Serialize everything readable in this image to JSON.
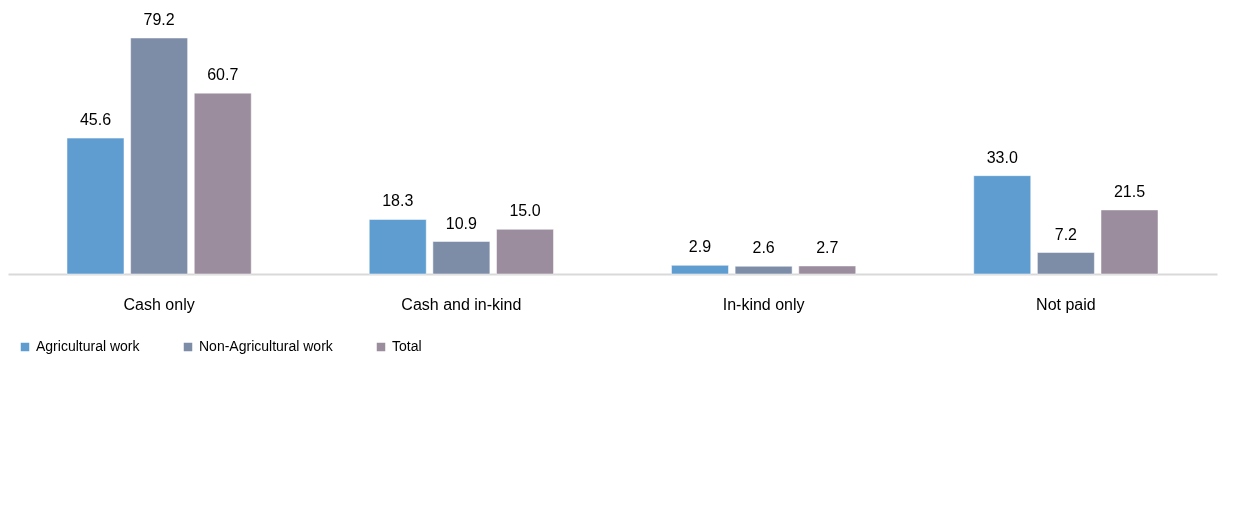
{
  "chart_data": {
    "type": "bar",
    "categories": [
      "Cash only",
      "Cash and in-kind",
      "In-kind only",
      "Not paid"
    ],
    "series": [
      {
        "name": "Agricultural work",
        "color": "#5f9ccf",
        "values": [
          45.6,
          18.3,
          2.9,
          33.0
        ],
        "value_labels": [
          "45.6",
          "18.3",
          "2.9",
          "33.0"
        ]
      },
      {
        "name": "Non-Agricultural work",
        "color": "#7d8ca7",
        "values": [
          79.2,
          10.9,
          2.6,
          7.2
        ],
        "value_labels": [
          "79.2",
          "10.9",
          "2.6",
          "7.2"
        ]
      },
      {
        "name": "Total",
        "color": "#9b8c9e",
        "values": [
          60.7,
          15.0,
          2.7,
          21.5
        ],
        "value_labels": [
          "60.7",
          "15.0",
          "2.7",
          "21.5"
        ]
      }
    ],
    "legend": "bottom",
    "grid": false
  }
}
